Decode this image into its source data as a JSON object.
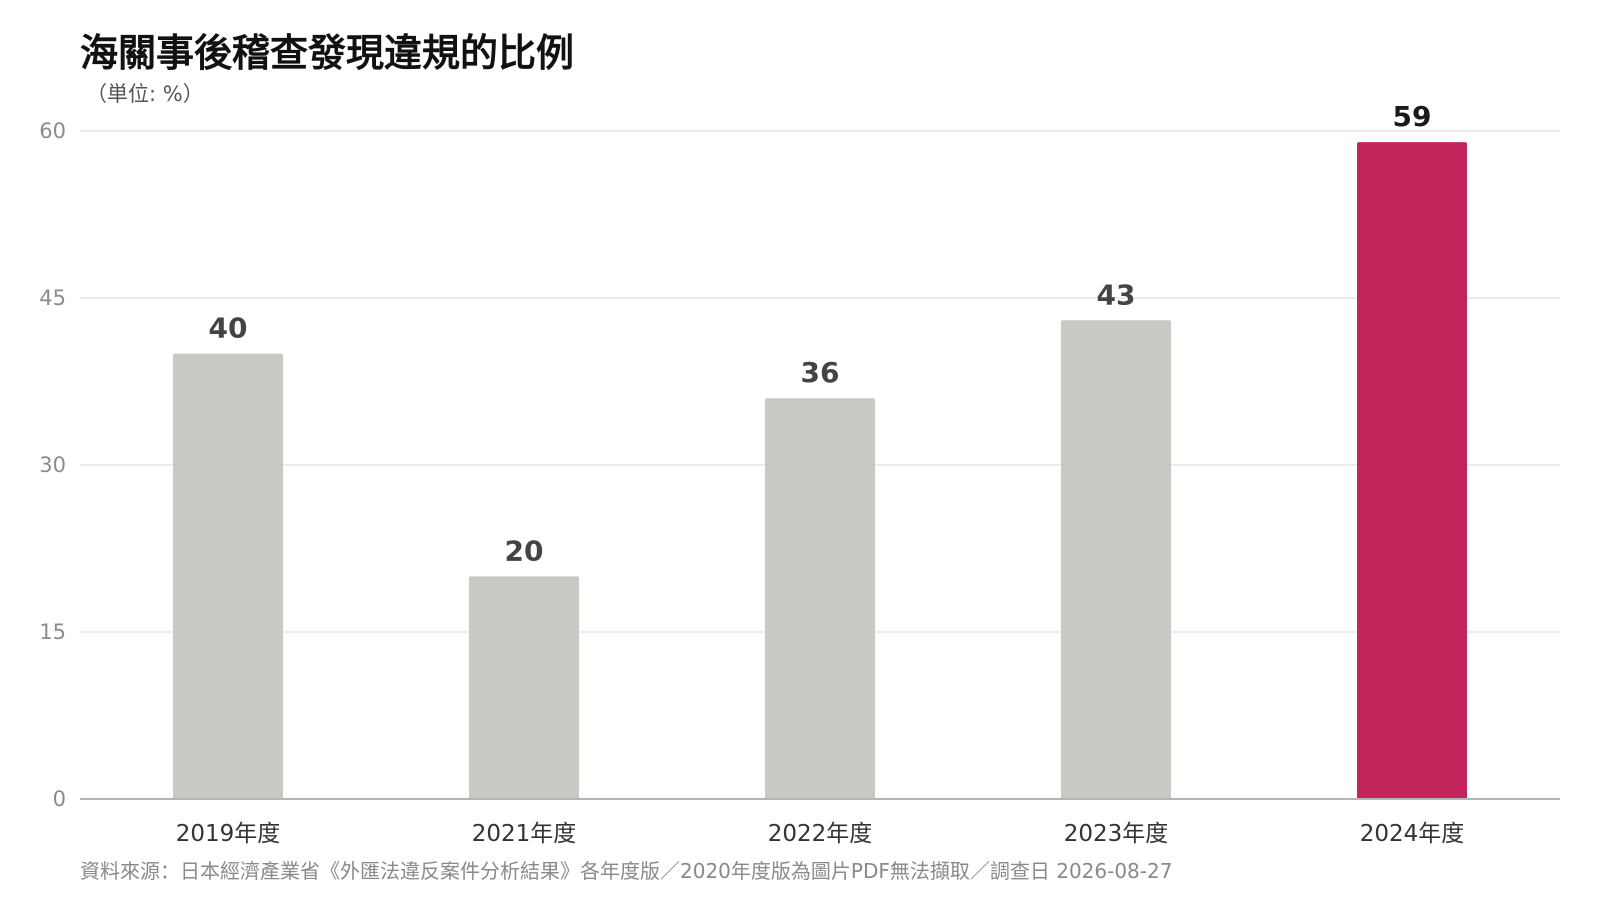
{
  "title": "海關事後稽查發現違規的比例",
  "unit_note": "（単位: %）",
  "source": "資料來源：日本經濟產業省《外匯法違反案件分析結果》各年度版／2020年度版為圖片PDF無法擷取／調查日 2026-08-27",
  "colors": {
    "bar": "#c9c9c4",
    "highlight": "#c2255c",
    "grid": "#e6e6e6",
    "axis": "#b5b5b5"
  },
  "chart_data": {
    "type": "bar",
    "categories": [
      "2019年度",
      "2021年度",
      "2022年度",
      "2023年度",
      "2024年度"
    ],
    "values": [
      40,
      20,
      36,
      43,
      59
    ],
    "data_labels": [
      "40",
      "20",
      "36",
      "43",
      "59"
    ],
    "highlight_index": 4,
    "ylim": [
      0,
      60
    ],
    "yticks": [
      0,
      15,
      30,
      45,
      60
    ],
    "ytick_labels": [
      "0",
      "15",
      "30",
      "45",
      "60"
    ],
    "grid": true,
    "legend": "none",
    "xlabel": "",
    "ylabel": ""
  }
}
